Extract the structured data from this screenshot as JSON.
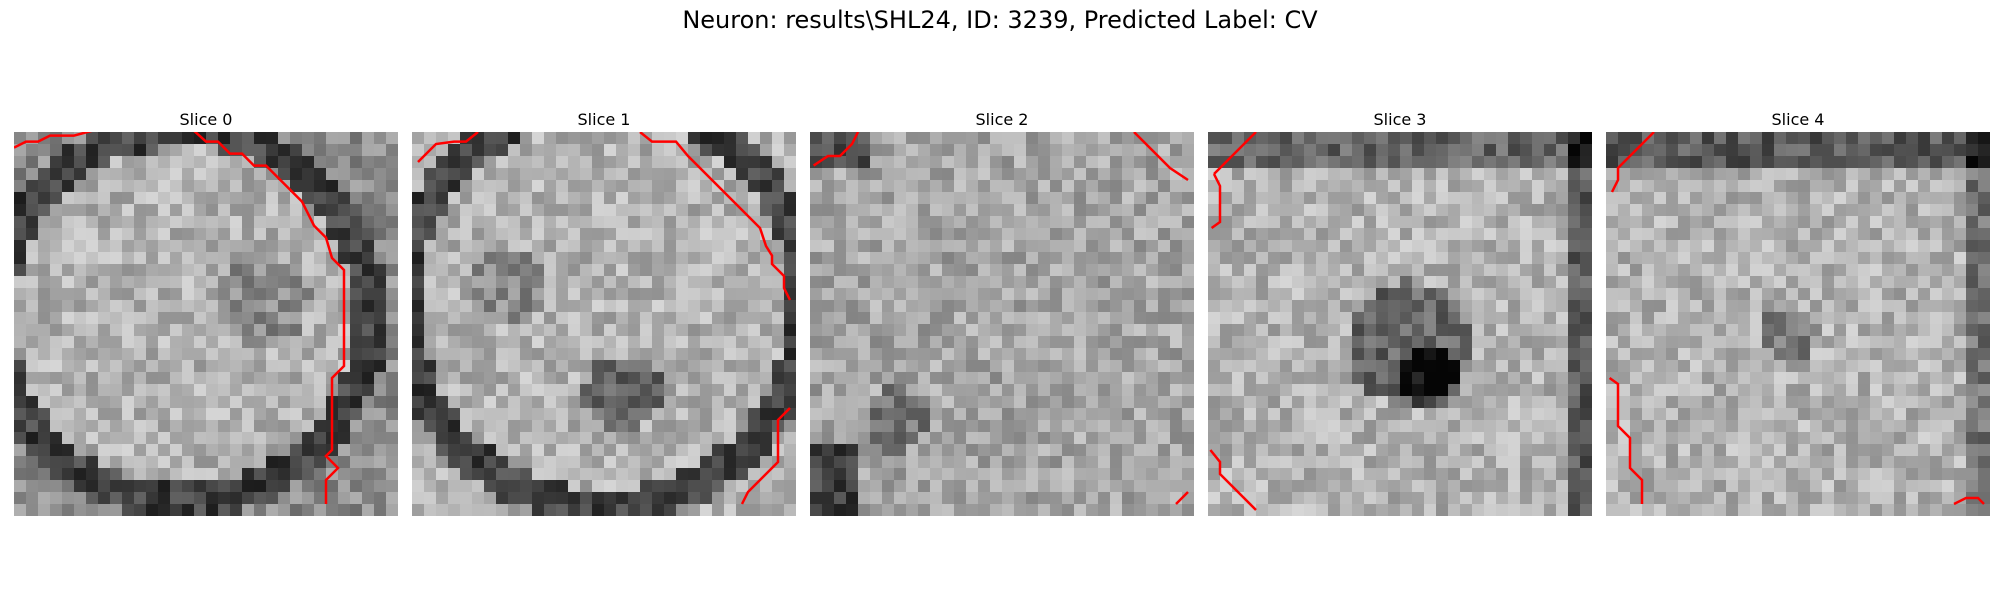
{
  "figure": {
    "title": "Neuron: results\\SHL24, ID: 3239, Predicted Label: CV"
  },
  "panels": [
    {
      "title": "Slice 0"
    },
    {
      "title": "Slice 1"
    },
    {
      "title": "Slice 2"
    },
    {
      "title": "Slice 3"
    },
    {
      "title": "Slice 4"
    }
  ],
  "colors": {
    "contour": "#ff0000",
    "colormap": "gray"
  }
}
